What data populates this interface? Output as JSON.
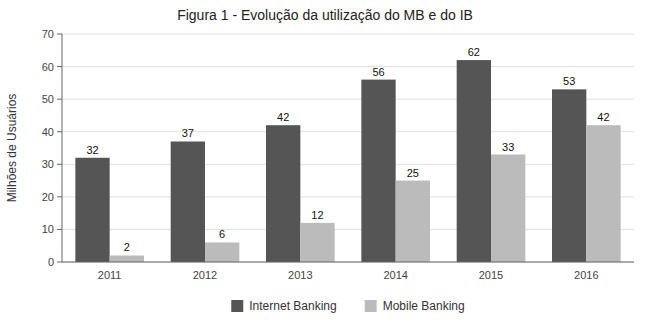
{
  "chart_data": {
    "type": "bar",
    "title": "Figura 1 - Evolução da utilização do MB e do IB",
    "ylabel": "Milhões de Usuários",
    "categories": [
      "2011",
      "2012",
      "2013",
      "2014",
      "2015",
      "2016"
    ],
    "series": [
      {
        "name": "Internet Banking",
        "color": "#555555",
        "values": [
          32,
          37,
          42,
          56,
          62,
          53
        ]
      },
      {
        "name": "Mobile Banking",
        "color": "#bbbbbb",
        "values": [
          2,
          6,
          12,
          25,
          33,
          42
        ]
      }
    ],
    "ylim": [
      0,
      70
    ],
    "yticks": [
      0,
      10,
      20,
      30,
      40,
      50,
      60,
      70
    ],
    "grid": true,
    "data_labels": true,
    "legend": "bottom"
  }
}
